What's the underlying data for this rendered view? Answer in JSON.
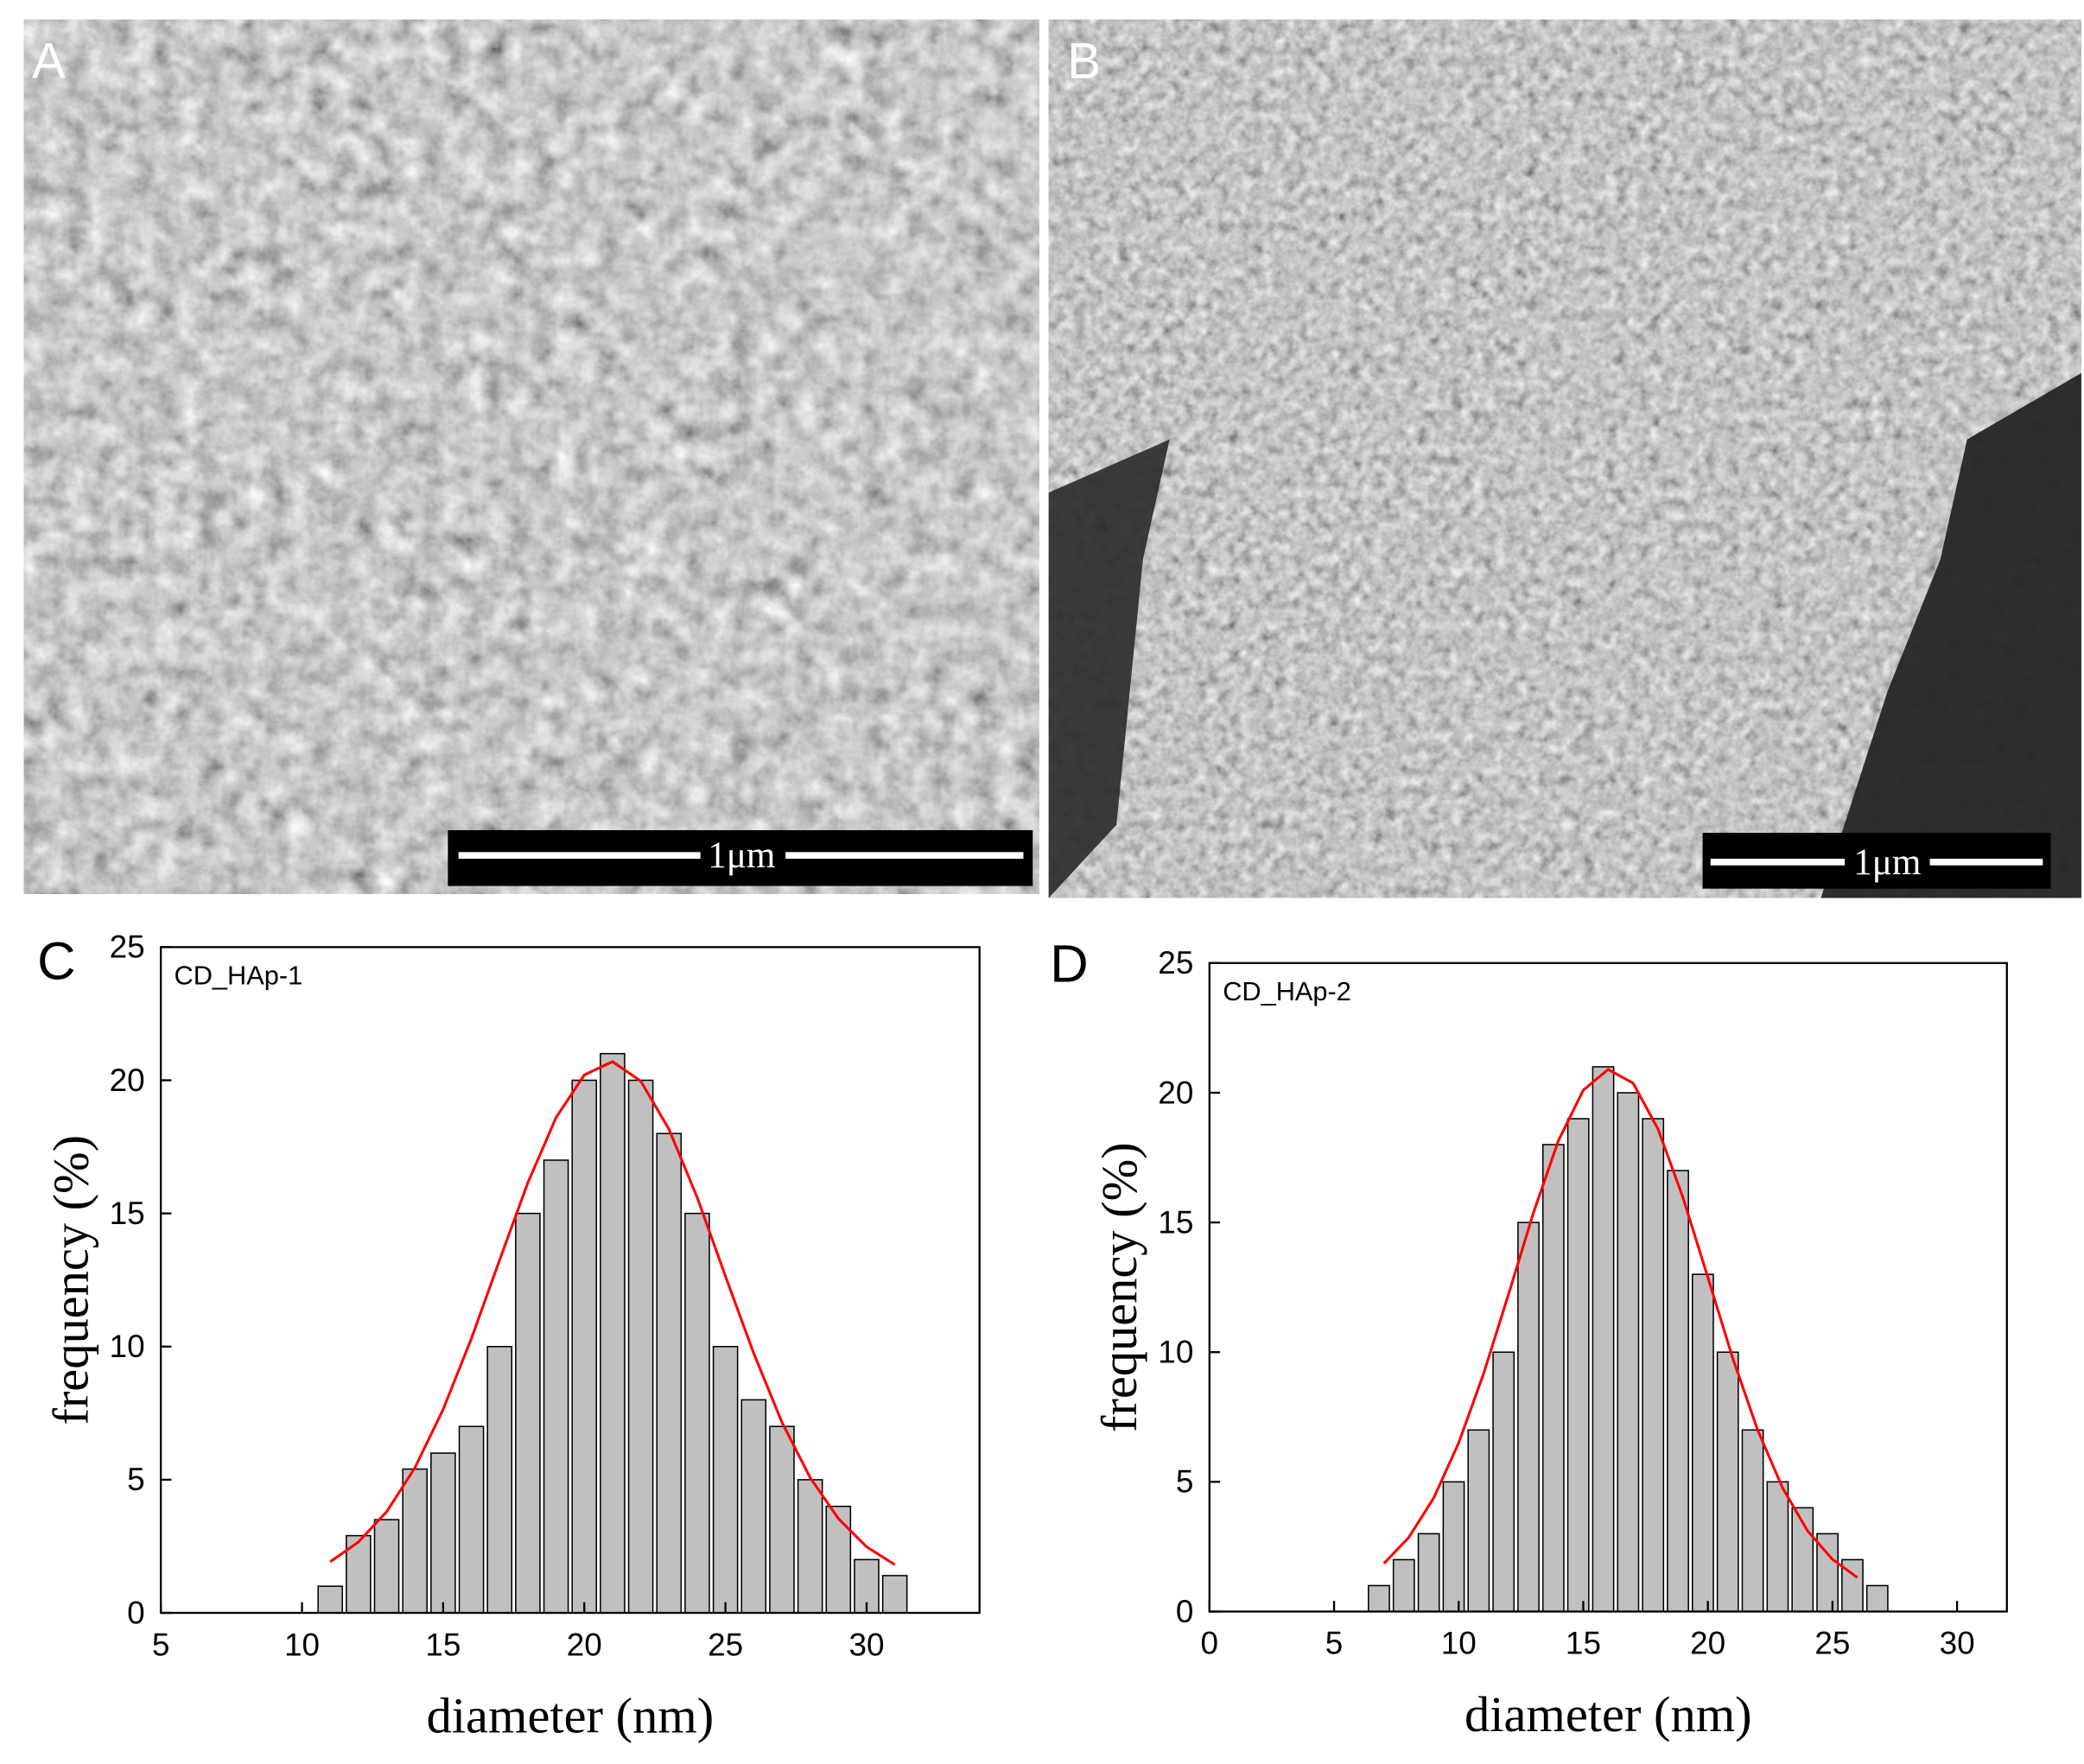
{
  "images": [
    {
      "label": "A",
      "scale_bar": "1μm"
    },
    {
      "label": "B",
      "scale_bar": "1μm"
    }
  ],
  "chart_data": [
    {
      "type": "histogram",
      "label": "C",
      "annotation": "CD_HAp-1",
      "x_label": "diameter (nm)",
      "y_label": "frequency (%)",
      "bins": [
        10.5,
        11.5,
        12.5,
        13.5,
        14.5,
        15.5,
        16.5,
        17.5,
        18.5,
        19.5,
        20.5,
        21.5,
        22.5,
        23.5,
        24.5,
        25.5,
        26.5,
        27.5,
        28.5,
        29.5,
        30.5,
        31.5
      ],
      "values": [
        1,
        2.9,
        3.5,
        5.4,
        6,
        7,
        10,
        15,
        17,
        20,
        21,
        20,
        18,
        15,
        10,
        8,
        7,
        5,
        4,
        2,
        1.4
      ],
      "color": "#c0c0c0",
      "fit": {
        "color": "#ff0000",
        "x": [
          11,
          12,
          13,
          14,
          15,
          16,
          17,
          18,
          19,
          20,
          21,
          22,
          23,
          24,
          25,
          26,
          27,
          28,
          29,
          30,
          31
        ],
        "y": [
          1.92,
          2.66,
          3.8,
          5.45,
          7.64,
          10.3,
          13.25,
          16.15,
          18.6,
          20.2,
          20.7,
          19.97,
          18.16,
          15.6,
          12.64,
          9.75,
          7.16,
          5.08,
          3.54,
          2.48,
          1.81
        ]
      },
      "xlim": [
        5,
        34
      ],
      "ylim": [
        0,
        25
      ],
      "xticks": [
        5,
        10,
        15,
        20,
        25,
        30
      ],
      "yticks": [
        0,
        5,
        10,
        15,
        20,
        25
      ]
    },
    {
      "type": "histogram",
      "label": "D",
      "annotation": "CD_HAp-2",
      "x_label": "diameter (nm)",
      "y_label": "frequency (%)",
      "bins": [
        6.3,
        7.3,
        8.3,
        9.3,
        10.3,
        11.3,
        12.3,
        13.3,
        14.3,
        15.3,
        16.3,
        17.3,
        18.3,
        19.3,
        20.3,
        21.3,
        22.3,
        23.3,
        24.3,
        25.3,
        26.3,
        27.3
      ],
      "values": [
        1,
        2,
        3,
        5,
        7,
        10,
        15,
        18,
        19,
        21,
        20,
        19,
        17,
        13,
        10,
        7,
        5,
        4,
        3,
        2,
        1
      ],
      "color": "#c0c0c0",
      "fit": {
        "color": "#ff0000",
        "x": [
          7,
          8,
          9,
          10,
          11,
          12,
          13,
          14,
          15,
          16,
          17,
          18,
          19,
          20,
          21,
          22,
          23,
          24,
          25,
          26
        ],
        "y": [
          1.85,
          2.86,
          4.38,
          6.5,
          9.17,
          12.23,
          15.37,
          18.15,
          20.1,
          20.9,
          20.37,
          18.6,
          15.96,
          12.88,
          9.76,
          6.99,
          4.76,
          3.11,
          2.01,
          1.31
        ]
      },
      "xlim": [
        0,
        32
      ],
      "ylim": [
        0,
        25
      ],
      "xticks": [
        0,
        5,
        10,
        15,
        20,
        25,
        30
      ],
      "yticks": [
        0,
        5,
        10,
        15,
        20,
        25
      ]
    }
  ]
}
